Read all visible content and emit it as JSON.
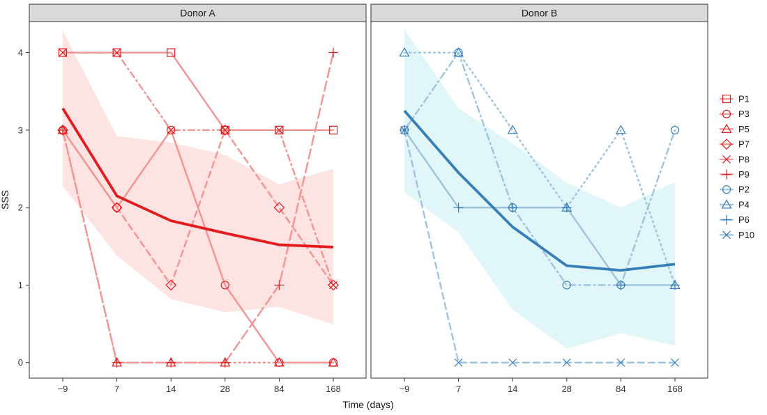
{
  "chart_data": {
    "type": "line",
    "xlabel": "Time (days)",
    "ylabel": "SSS",
    "x_categories": [
      "−9",
      "7",
      "14",
      "28",
      "84",
      "168"
    ],
    "ylim": [
      -0.2,
      4.4
    ],
    "yticks": [
      "0",
      "1",
      "2",
      "3",
      "4"
    ],
    "panels": [
      {
        "title": "Donor A",
        "color": "#e41a1c",
        "light_color": "#f29494",
        "band_color": "#fde3e2",
        "trend": [
          3.28,
          2.15,
          1.83,
          1.67,
          1.52,
          1.49
        ],
        "band_lower": [
          2.28,
          1.38,
          0.82,
          0.65,
          0.72,
          0.49
        ],
        "band_upper": [
          4.28,
          2.92,
          2.84,
          2.68,
          2.3,
          2.5
        ],
        "series": [
          {
            "name": "P1",
            "shape": "square",
            "linetype": "solid",
            "values": [
              4,
              4,
              4,
              3,
              3,
              3
            ]
          },
          {
            "name": "P3",
            "shape": "circle",
            "linetype": "solid",
            "values": [
              3,
              2,
              3,
              1,
              0,
              0
            ]
          },
          {
            "name": "P5",
            "shape": "triangle",
            "linetype": "dotted",
            "values": [
              3,
              0,
              0,
              0,
              0,
              0
            ]
          },
          {
            "name": "P7",
            "shape": "diamond",
            "linetype": "dashed",
            "values": [
              3,
              2,
              1,
              3,
              2,
              1
            ]
          },
          {
            "name": "P8",
            "shape": "x",
            "linetype": "dotdash",
            "values": [
              4,
              4,
              3,
              3,
              3,
              1
            ]
          },
          {
            "name": "P9",
            "shape": "plus",
            "linetype": "longdash",
            "values": [
              3,
              0,
              0,
              0,
              1,
              4
            ]
          }
        ]
      },
      {
        "title": "Donor B",
        "color": "#377eb8",
        "light_color": "#9ec3dd",
        "band_color": "#e0f6f8",
        "trend": [
          3.25,
          2.45,
          1.75,
          1.25,
          1.19,
          1.27
        ],
        "band_lower": [
          2.2,
          1.68,
          0.68,
          0.18,
          0.38,
          0.22
        ],
        "band_upper": [
          4.3,
          3.28,
          2.83,
          2.32,
          2.0,
          2.33
        ],
        "series": [
          {
            "name": "P2",
            "shape": "circle",
            "linetype": "dotdash",
            "values": [
              3,
              4,
              2,
              1,
              1,
              3
            ]
          },
          {
            "name": "P4",
            "shape": "triangle",
            "linetype": "dotted",
            "values": [
              4,
              4,
              3,
              2,
              3,
              1
            ]
          },
          {
            "name": "P6",
            "shape": "plus",
            "linetype": "solid",
            "values": [
              3,
              2,
              2,
              2,
              1,
              1
            ]
          },
          {
            "name": "P10",
            "shape": "x",
            "linetype": "dashed",
            "values": [
              3,
              0,
              0,
              0,
              0,
              0
            ]
          }
        ]
      }
    ],
    "legend": [
      {
        "name": "P1",
        "shape": "square",
        "panel": 0
      },
      {
        "name": "P3",
        "shape": "circle",
        "panel": 0
      },
      {
        "name": "P5",
        "shape": "triangle",
        "panel": 0
      },
      {
        "name": "P7",
        "shape": "diamond",
        "panel": 0
      },
      {
        "name": "P8",
        "shape": "x",
        "panel": 0
      },
      {
        "name": "P9",
        "shape": "plus",
        "panel": 0
      },
      {
        "name": "P2",
        "shape": "circle",
        "panel": 1
      },
      {
        "name": "P4",
        "shape": "triangle",
        "panel": 1
      },
      {
        "name": "P6",
        "shape": "plus",
        "panel": 1
      },
      {
        "name": "P10",
        "shape": "x",
        "panel": 1
      }
    ],
    "legend_position": "right"
  }
}
